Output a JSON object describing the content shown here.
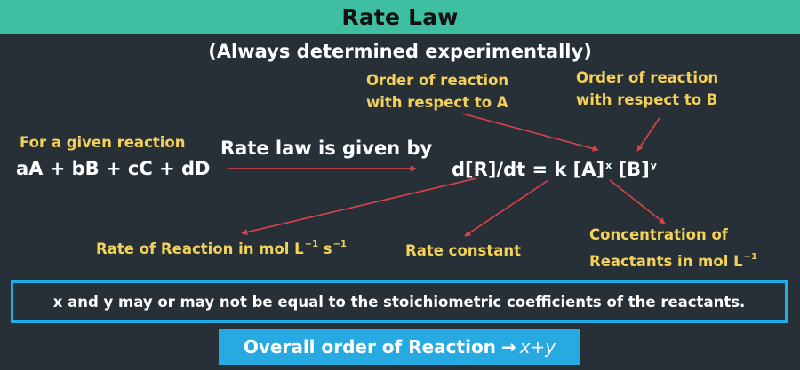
{
  "title": "Rate Law",
  "subtitle": "(Always determined experimentally)",
  "left_block": {
    "label": "For a given reaction",
    "reaction": "aA + bB + cC + dD"
  },
  "rate_law_label": "Rate law is given by",
  "equation": {
    "lhs": "d[R]/dt = k [A]",
    "exp_a": "x",
    "mid": " [B]",
    "exp_b": "y"
  },
  "annotations": {
    "order_a_line1": "Order of reaction",
    "order_a_line2": "with respect to A",
    "order_b_line1": "Order of reaction",
    "order_b_line2": "with respect to B",
    "rate_of_reaction": "Rate of Reaction in mol L",
    "rate_of_reaction_exp1": "−1",
    "rate_of_reaction_unit2": " s",
    "rate_of_reaction_exp2": "−1",
    "rate_constant": "Rate constant",
    "concentration_line1": "Concentration of",
    "concentration_line2": "Reactants in mol L",
    "concentration_exp": "−1"
  },
  "note": "x and y may or may not be equal to the stoichiometric coefficients of the reactants.",
  "overall": {
    "label": "Overall order of Reaction",
    "arrow": "→",
    "value": "x+y"
  },
  "colors": {
    "background": "#283037",
    "title_bar": "#3fbfa1",
    "label_yellow": "#f4d25a",
    "arrow_red": "#e0424a",
    "box_blue": "#27a9e1"
  }
}
